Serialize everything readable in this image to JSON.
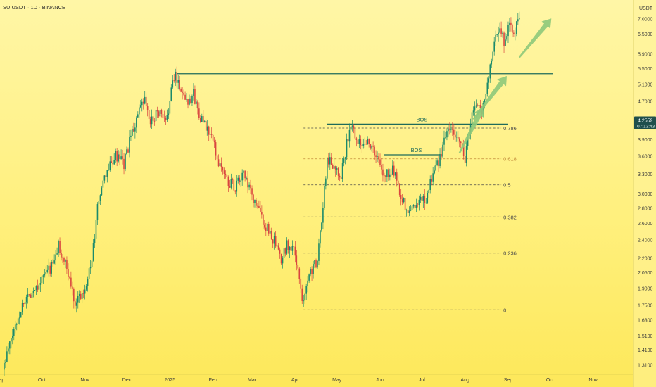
{
  "chart_data": {
    "type": "candlestick",
    "title": "SUIUSDT · 1D · BINANCE",
    "currency": "USDT",
    "y_scale": "log",
    "ylim": [
      1.26,
      7.4
    ],
    "x_range": [
      "2024-09-01",
      "2025-11-30"
    ],
    "x_ticks": [
      {
        "label": "Sep",
        "date": "2024-09-01"
      },
      {
        "label": "Oct",
        "date": "2024-10-01"
      },
      {
        "label": "Nov",
        "date": "2024-11-01"
      },
      {
        "label": "Dec",
        "date": "2024-12-01"
      },
      {
        "label": "2025",
        "date": "2025-01-01"
      },
      {
        "label": "Feb",
        "date": "2025-02-01"
      },
      {
        "label": "Mar",
        "date": "2025-03-01"
      },
      {
        "label": "Apr",
        "date": "2025-04-01"
      },
      {
        "label": "May",
        "date": "2025-05-01"
      },
      {
        "label": "Jun",
        "date": "2025-06-01"
      },
      {
        "label": "Jul",
        "date": "2025-07-01"
      },
      {
        "label": "Aug",
        "date": "2025-08-01"
      },
      {
        "label": "Sep",
        "date": "2025-09-01"
      },
      {
        "label": "Oct",
        "date": "2025-10-01"
      },
      {
        "label": "Nov",
        "date": "2025-11-01"
      }
    ],
    "y_ticks": [
      "7.0000",
      "6.5000",
      "5.9000",
      "5.5000",
      "5.1000",
      "4.7000",
      "4.2559",
      "3.9000",
      "3.6000",
      "3.3000",
      "3.0000",
      "2.8000",
      "2.6000",
      "2.4000",
      "2.2000",
      "2.0500",
      "1.9000",
      "1.7500",
      "1.6300",
      "1.5100",
      "1.4100",
      "1.3100"
    ],
    "current_price": {
      "label": "4.2559",
      "countdown": "07:13:43",
      "value": 4.2559
    },
    "price_path": [
      [
        "2024-09-04",
        1.28
      ],
      [
        "2024-09-12",
        1.55
      ],
      [
        "2024-09-19",
        1.78
      ],
      [
        "2024-09-27",
        1.9
      ],
      [
        "2024-10-04",
        2.02
      ],
      [
        "2024-10-11",
        2.15
      ],
      [
        "2024-10-14",
        2.34
      ],
      [
        "2024-10-20",
        2.08
      ],
      [
        "2024-10-26",
        1.78
      ],
      [
        "2024-11-01",
        1.87
      ],
      [
        "2024-11-07",
        2.18
      ],
      [
        "2024-11-12",
        2.95
      ],
      [
        "2024-11-18",
        3.35
      ],
      [
        "2024-11-24",
        3.6
      ],
      [
        "2024-11-30",
        3.45
      ],
      [
        "2024-12-04",
        3.85
      ],
      [
        "2024-12-10",
        4.4
      ],
      [
        "2024-12-15",
        4.7
      ],
      [
        "2024-12-19",
        4.2
      ],
      [
        "2024-12-24",
        4.5
      ],
      [
        "2024-12-30",
        4.2
      ],
      [
        "2025-01-04",
        5.1
      ],
      [
        "2025-01-06",
        5.35
      ],
      [
        "2025-01-10",
        4.95
      ],
      [
        "2025-01-15",
        4.7
      ],
      [
        "2025-01-19",
        4.85
      ],
      [
        "2025-01-22",
        4.5
      ],
      [
        "2025-01-27",
        4.15
      ],
      [
        "2025-02-01",
        3.95
      ],
      [
        "2025-02-06",
        3.5
      ],
      [
        "2025-02-12",
        3.2
      ],
      [
        "2025-02-18",
        3.1
      ],
      [
        "2025-02-24",
        3.3
      ],
      [
        "2025-03-01",
        3.0
      ],
      [
        "2025-03-06",
        2.8
      ],
      [
        "2025-03-12",
        2.55
      ],
      [
        "2025-03-18",
        2.38
      ],
      [
        "2025-03-23",
        2.15
      ],
      [
        "2025-03-27",
        2.35
      ],
      [
        "2025-04-02",
        2.25
      ],
      [
        "2025-04-07",
        1.78
      ],
      [
        "2025-04-12",
        2.05
      ],
      [
        "2025-04-18",
        2.15
      ],
      [
        "2025-04-22",
        2.85
      ],
      [
        "2025-04-25",
        3.55
      ],
      [
        "2025-04-30",
        3.45
      ],
      [
        "2025-05-05",
        3.3
      ],
      [
        "2025-05-10",
        3.95
      ],
      [
        "2025-05-13",
        4.15
      ],
      [
        "2025-05-18",
        3.85
      ],
      [
        "2025-05-24",
        3.9
      ],
      [
        "2025-05-31",
        3.55
      ],
      [
        "2025-06-05",
        3.25
      ],
      [
        "2025-06-11",
        3.4
      ],
      [
        "2025-06-17",
        3.0
      ],
      [
        "2025-06-22",
        2.7
      ],
      [
        "2025-06-26",
        2.85
      ],
      [
        "2025-07-02",
        2.9
      ],
      [
        "2025-07-06",
        2.95
      ],
      [
        "2025-07-10",
        3.35
      ],
      [
        "2025-07-14",
        3.5
      ],
      [
        "2025-07-18",
        3.85
      ],
      [
        "2025-07-21",
        4.2
      ],
      [
        "2025-07-25",
        3.9
      ],
      [
        "2025-07-28",
        4.0
      ],
      [
        "2025-08-02",
        3.55
      ],
      [
        "2025-08-06",
        4.3
      ],
      [
        "2025-08-10",
        4.6
      ],
      [
        "2025-08-14",
        4.45
      ],
      [
        "2025-08-18",
        5.1
      ],
      [
        "2025-08-21",
        5.8
      ],
      [
        "2025-08-24",
        6.4
      ],
      [
        "2025-08-27",
        6.7
      ],
      [
        "2025-08-30",
        6.3
      ],
      [
        "2025-09-03",
        6.9
      ],
      [
        "2025-09-06",
        6.55
      ],
      [
        "2025-09-10",
        7.0
      ]
    ],
    "fibonacci": {
      "start_date": "2025-04-07",
      "end_date": "2025-08-27",
      "levels": [
        {
          "label": "0.786",
          "price": 4.12
        },
        {
          "label": "0.618",
          "price": 3.55
        },
        {
          "label": "0.5",
          "price": 3.13
        },
        {
          "label": "0.382",
          "price": 2.68
        },
        {
          "label": "0.236",
          "price": 2.25
        },
        {
          "label": "0",
          "price": 1.71
        }
      ]
    },
    "resistance_line": {
      "price": 5.36,
      "start_date": "2025-01-06",
      "end_date": "2025-10-03"
    },
    "bos_lines": [
      {
        "label": "BOS",
        "price": 4.2,
        "start_date": "2025-04-24",
        "end_date": "2025-09-01"
      },
      {
        "label": "BOS",
        "price": 3.62,
        "start_date": "2025-06-04",
        "end_date": "2025-07-14"
      }
    ],
    "projection_arrows": [
      {
        "from": [
          "2025-07-28",
          3.65
        ],
        "to": [
          "2025-08-14",
          4.55
        ]
      },
      {
        "from": [
          "2025-08-07",
          4.3
        ],
        "to": [
          "2025-08-31",
          5.3
        ]
      },
      {
        "from": [
          "2025-09-09",
          5.8
        ],
        "to": [
          "2025-10-02",
          7.0
        ]
      }
    ],
    "colors": {
      "up": "#1b8a6b",
      "down": "#d9453f",
      "line": "#1f6b5a",
      "fib": "#4a4a4a",
      "fib_618": "#c08a3a",
      "arrow": "#8ec97a",
      "price_tag": "#1f4f4c"
    }
  }
}
